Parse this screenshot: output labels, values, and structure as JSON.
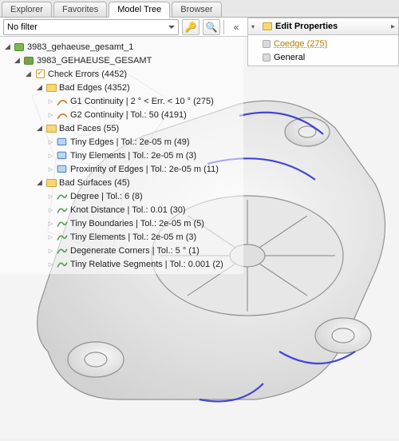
{
  "tabs": {
    "items": [
      "Explorer",
      "Favorites",
      "Model Tree",
      "Browser"
    ],
    "active_index": 2
  },
  "filter": {
    "value": "No filter",
    "key_icon": "key-icon",
    "search_icon": "search-icon"
  },
  "right_panel": {
    "title": "Edit Properties",
    "items": [
      {
        "label": "Coedge (275)",
        "highlight": true
      },
      {
        "label": "General",
        "highlight": false
      }
    ]
  },
  "colors": {
    "tab_active_bg": "#ffffff",
    "tab_inactive_bg": "#e8e8e8",
    "accent_edge": "#3b3bd6",
    "folder": "#f7d774",
    "assembly": "#7ab850",
    "highlight_text": "#b47b00"
  },
  "tree": {
    "root": {
      "label": "3983_gehaeuse_gesamt_1",
      "icon": "assembly",
      "children": [
        {
          "label": "3983_GEHAEUSE_GESAMT",
          "icon": "part-warn",
          "children": [
            {
              "label": "Check Errors (4452)",
              "icon": "check",
              "children": [
                {
                  "label": "Bad Edges (4352)",
                  "icon": "folder",
                  "children": [
                    {
                      "label": "G1 Continuity | 2 ° < Err. < 10 ° (275)",
                      "icon": "edge"
                    },
                    {
                      "label": "G2 Continuity | Tol.: 50 (4191)",
                      "icon": "edge"
                    }
                  ]
                },
                {
                  "label": "Bad Faces (55)",
                  "icon": "folder",
                  "children": [
                    {
                      "label": "Tiny Edges | Tol.: 2e-05 m (49)",
                      "icon": "face"
                    },
                    {
                      "label": "Tiny Elements | Tol.: 2e-05 m (3)",
                      "icon": "face"
                    },
                    {
                      "label": "Proximity of Edges | Tol.: 2e-05 m (11)",
                      "icon": "face"
                    }
                  ]
                },
                {
                  "label": "Bad Surfaces (45)",
                  "icon": "folder",
                  "children": [
                    {
                      "label": "Degree | Tol.: 6 (8)",
                      "icon": "surf"
                    },
                    {
                      "label": "Knot Distance | Tol.: 0.01 (30)",
                      "icon": "surf"
                    },
                    {
                      "label": "Tiny Boundaries | Tol.: 2e-05 m (5)",
                      "icon": "surf"
                    },
                    {
                      "label": "Tiny Elements | Tol.: 2e-05 m (3)",
                      "icon": "surf"
                    },
                    {
                      "label": "Degenerate Corners | Tol.: 5 ° (1)",
                      "icon": "surf"
                    },
                    {
                      "label": "Tiny Relative Segments | Tol.: 0.001 (2)",
                      "icon": "surf"
                    }
                  ]
                }
              ]
            }
          ]
        }
      ]
    }
  }
}
